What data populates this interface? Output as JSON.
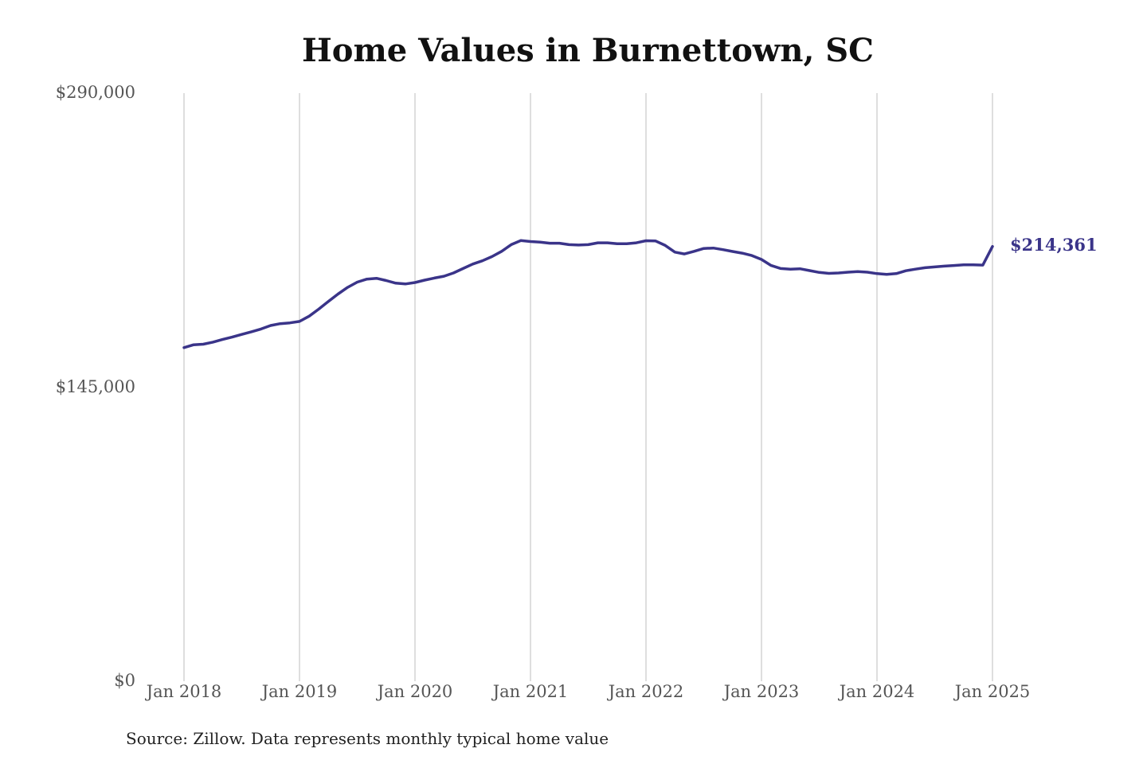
{
  "chart_data": {
    "type": "line",
    "title": "Home Values in Burnettown, SC",
    "xlabel": "",
    "ylabel": "",
    "x_start": "Jan 2018",
    "x_ticks": [
      "Jan 2018",
      "Jan 2019",
      "Jan 2020",
      "Jan 2021",
      "Jan 2022",
      "Jan 2023",
      "Jan 2024",
      "Jan 2025"
    ],
    "y_ticks": [
      "$0",
      "$145,000",
      "$290,000"
    ],
    "ylim": [
      0,
      290000
    ],
    "grid": "vertical",
    "line_color": "#3a3489",
    "end_label": "$214,361",
    "series": [
      {
        "name": "",
        "values": [
          164500,
          165900,
          166200,
          167200,
          168500,
          169700,
          171000,
          172300,
          173700,
          175400,
          176300,
          176700,
          177400,
          180000,
          183500,
          187300,
          190900,
          194200,
          196800,
          198300,
          198700,
          197600,
          196300,
          195900,
          196600,
          197800,
          198800,
          199700,
          201300,
          203500,
          205700,
          207300,
          209400,
          212000,
          215300,
          217300,
          216800,
          216500,
          216000,
          216000,
          215300,
          215100,
          215300,
          216200,
          216200,
          215700,
          215700,
          216200,
          217200,
          217100,
          214900,
          211600,
          210700,
          212000,
          213400,
          213600,
          212800,
          211900,
          211100,
          209900,
          208000,
          205000,
          203500,
          203200,
          203400,
          202500,
          201600,
          201100,
          201300,
          201700,
          202000,
          201700,
          201000,
          200600,
          201000,
          202400,
          203200,
          203900,
          204300,
          204700,
          205000,
          205300,
          205300,
          205200,
          214361
        ]
      }
    ],
    "source": "Source: Zillow. Data represents monthly typical home value"
  }
}
